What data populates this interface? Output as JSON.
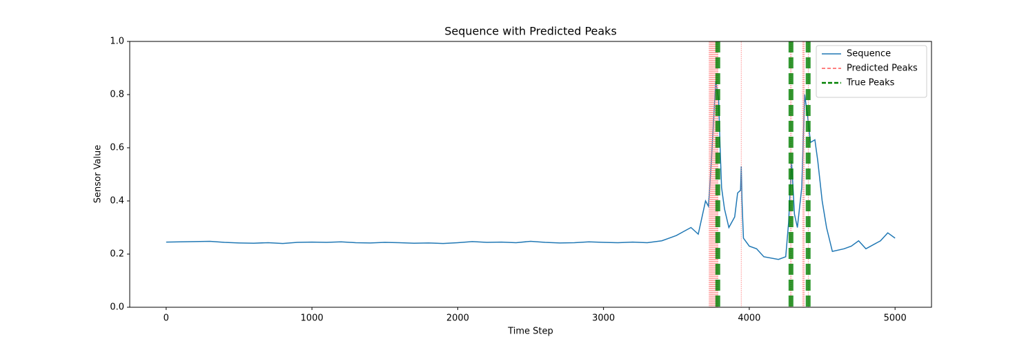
{
  "chart_data": {
    "type": "line",
    "title": "Sequence with Predicted Peaks",
    "x_label": "Time Step",
    "y_label": "Sensor Value",
    "xlim": [
      -250,
      5250
    ],
    "xticks": [
      0,
      1000,
      2000,
      3000,
      4000,
      5000
    ],
    "ylim": [
      0,
      1
    ],
    "yticks": [
      {
        "value": 0,
        "label": "0.0"
      },
      {
        "value": 0.2,
        "label": "0.2"
      },
      {
        "value": 0.4,
        "label": "0.4"
      },
      {
        "value": 0.6,
        "label": "0.6"
      },
      {
        "value": 0.8,
        "label": "0.8"
      },
      {
        "value": 1,
        "label": "1.0"
      }
    ],
    "legend": "upper right",
    "series": [
      {
        "name": "Sequence",
        "color": "#1f77b4",
        "x": [
          0,
          100,
          200,
          300,
          400,
          500,
          600,
          700,
          800,
          900,
          1000,
          1100,
          1200,
          1300,
          1400,
          1500,
          1600,
          1700,
          1800,
          1900,
          2000,
          2100,
          2200,
          2300,
          2400,
          2500,
          2600,
          2700,
          2800,
          2900,
          3000,
          3100,
          3200,
          3300,
          3400,
          3450,
          3500,
          3550,
          3600,
          3650,
          3700,
          3720,
          3740,
          3760,
          3770,
          3790,
          3800,
          3810,
          3830,
          3860,
          3900,
          3920,
          3940,
          3945,
          3950,
          3960,
          4000,
          4050,
          4100,
          4200,
          4250,
          4270,
          4290,
          4310,
          4330,
          4360,
          4380,
          4400,
          4420,
          4450,
          4470,
          4500,
          4530,
          4570,
          4650,
          4700,
          4750,
          4800,
          4900,
          4950,
          5000
        ],
        "values": [
          0.245,
          0.246,
          0.247,
          0.248,
          0.244,
          0.242,
          0.241,
          0.243,
          0.24,
          0.244,
          0.245,
          0.244,
          0.246,
          0.243,
          0.242,
          0.244,
          0.243,
          0.241,
          0.242,
          0.24,
          0.243,
          0.247,
          0.244,
          0.245,
          0.243,
          0.248,
          0.244,
          0.242,
          0.243,
          0.246,
          0.244,
          0.243,
          0.245,
          0.243,
          0.25,
          0.26,
          0.27,
          0.285,
          0.3,
          0.275,
          0.4,
          0.38,
          0.55,
          0.75,
          0.85,
          0.78,
          0.6,
          0.45,
          0.37,
          0.3,
          0.34,
          0.43,
          0.44,
          0.53,
          0.4,
          0.26,
          0.23,
          0.22,
          0.19,
          0.18,
          0.19,
          0.32,
          0.55,
          0.35,
          0.3,
          0.45,
          0.8,
          0.72,
          0.62,
          0.63,
          0.55,
          0.4,
          0.3,
          0.21,
          0.22,
          0.23,
          0.25,
          0.22,
          0.25,
          0.28,
          0.26
        ]
      }
    ],
    "vlines": [
      {
        "name": "Predicted Peaks",
        "color": "#ff7f7f",
        "x": [
          3725,
          3730,
          3735,
          3740,
          3745,
          3750,
          3755,
          3760,
          3765,
          3770,
          3775,
          3780,
          3785,
          3945,
          4282,
          4290,
          4366,
          4372,
          4378,
          4405
        ]
      },
      {
        "name": "True Peaks",
        "color": "#008000",
        "x": [
          3784,
          4286,
          4404
        ]
      }
    ]
  }
}
